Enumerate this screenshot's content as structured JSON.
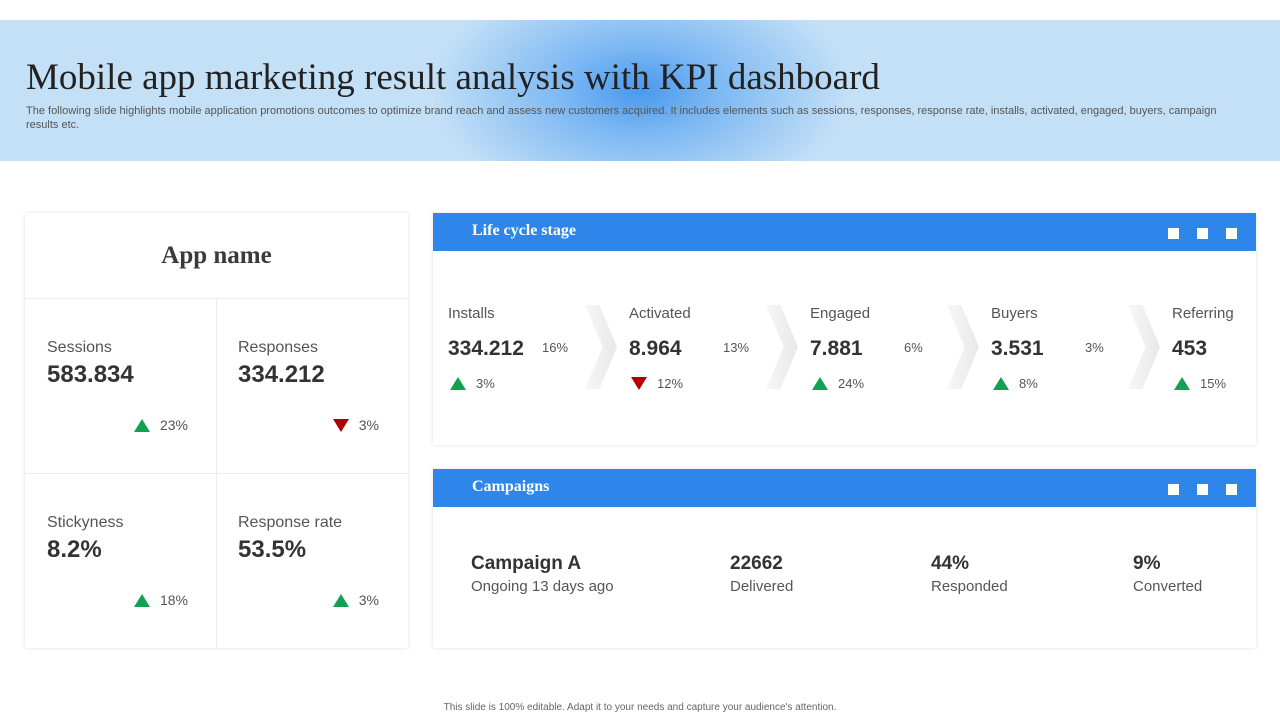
{
  "header": {
    "title": "Mobile app marketing result analysis with KPI dashboard",
    "subtitle": "The following slide highlights mobile application promotions outcomes to optimize brand reach and assess new customers acquired. It includes elements such as sessions, responses, response rate, installs, activated, engaged, buyers, campaign results etc."
  },
  "app_card": {
    "title": "App name",
    "metrics": [
      {
        "label": "Sessions",
        "value": "583.834",
        "change": "23%",
        "direction": "up"
      },
      {
        "label": "Responses",
        "value": "334.212",
        "change": "3%",
        "direction": "down"
      },
      {
        "label": "Stickyness",
        "value": "8.2%",
        "change": "18%",
        "direction": "up"
      },
      {
        "label": "Response rate",
        "value": "53.5%",
        "change": "3%",
        "direction": "up"
      }
    ]
  },
  "lifecycle": {
    "title": "Life cycle stage",
    "stages": [
      {
        "label": "Installs",
        "value": "334.212",
        "conversion": "16%",
        "change": "3%",
        "direction": "up"
      },
      {
        "label": "Activated",
        "value": "8.964",
        "conversion": "13%",
        "change": "12%",
        "direction": "down"
      },
      {
        "label": "Engaged",
        "value": "7.881",
        "conversion": "6%",
        "change": "24%",
        "direction": "up"
      },
      {
        "label": "Buyers",
        "value": "3.531",
        "conversion": "3%",
        "change": "8%",
        "direction": "up"
      },
      {
        "label": "Referring",
        "value": "453",
        "conversion": "",
        "change": "15%",
        "direction": "up"
      }
    ]
  },
  "campaigns": {
    "title": "Campaigns",
    "name": "Campaign A",
    "status": "Ongoing 13 days ago",
    "delivered_value": "22662",
    "delivered_label": "Delivered",
    "responded_value": "44%",
    "responded_label": "Responded",
    "converted_value": "9%",
    "converted_label": "Converted"
  },
  "colors": {
    "accent": "#2f86ea",
    "up": "#12a150",
    "down": "#b00000"
  },
  "icons": {
    "up": "triangle-up-icon",
    "down": "triangle-down-icon"
  },
  "footer": "This slide is 100% editable. Adapt it to your needs and capture your audience's attention."
}
